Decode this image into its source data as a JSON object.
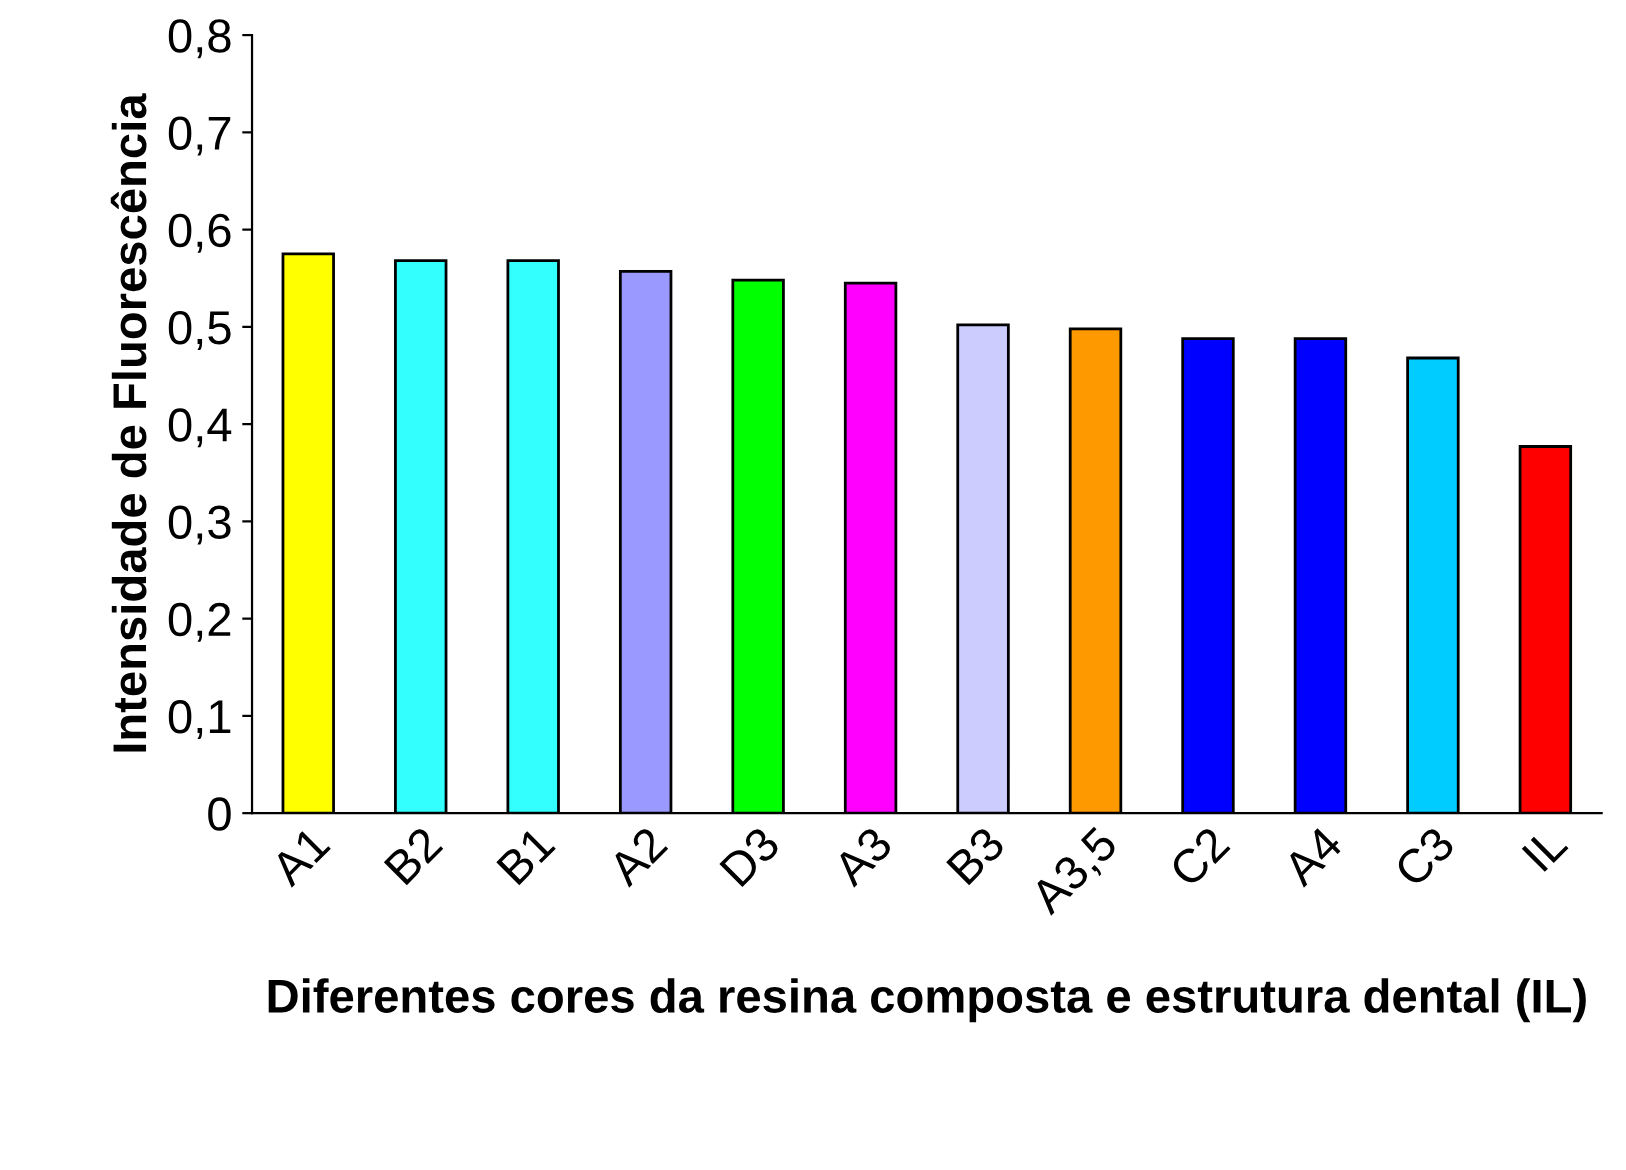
{
  "chart_data": {
    "type": "bar",
    "xlabel": "Diferentes cores da resina composta e estrutura dental (IL)",
    "ylabel": "Intensidade de Fluorescência",
    "categories": [
      "A1",
      "B2",
      "B1",
      "A2",
      "D3",
      "A3",
      "B3",
      "A3,5",
      "C2",
      "A4",
      "C3",
      "IL"
    ],
    "values": [
      0.575,
      0.568,
      0.568,
      0.557,
      0.548,
      0.545,
      0.502,
      0.498,
      0.488,
      0.488,
      0.468,
      0.377
    ],
    "colors": [
      "#ffff00",
      "#33ffff",
      "#33ffff",
      "#9999ff",
      "#00ff00",
      "#ff00ff",
      "#ccccff",
      "#ff9900",
      "#0000ff",
      "#0000ff",
      "#00ccff",
      "#ff0000"
    ],
    "ylim": [
      0,
      0.8
    ],
    "yticks": [
      0,
      {
        "value": 0.1,
        "label": "0,1"
      },
      {
        "value": 0.2,
        "label": "0,2"
      },
      {
        "value": 0.3,
        "label": "0,3"
      },
      {
        "value": 0.4,
        "label": "0,4"
      },
      {
        "value": 0.5,
        "label": "0,5"
      },
      {
        "value": 0.6,
        "label": "0,6"
      },
      {
        "value": 0.7,
        "label": "0,7"
      },
      {
        "value": 0.8,
        "label": "0,8"
      }
    ],
    "grid": false,
    "legend": false
  }
}
